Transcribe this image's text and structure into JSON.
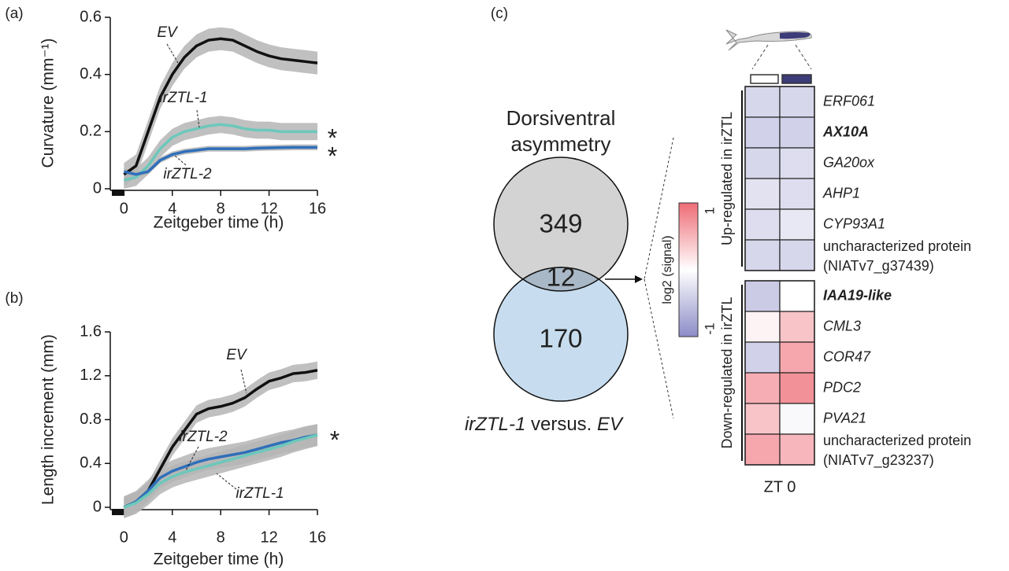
{
  "chart_data": [
    {
      "type": "line",
      "panel_label": "(a)",
      "xlabel": "Zeitgeber time (h)",
      "ylabel": "Curvature (mm⁻¹)",
      "x": [
        0,
        1,
        2,
        3,
        4,
        5,
        6,
        7,
        8,
        9,
        10,
        11,
        12,
        13,
        14,
        15,
        16
      ],
      "xlim": [
        -1,
        16
      ],
      "xticks": [
        0,
        4,
        8,
        12,
        16
      ],
      "ylim": [
        0,
        0.6
      ],
      "yticks": [
        0,
        0.2,
        0.4,
        0.6
      ],
      "dark_period": [
        -1,
        0
      ],
      "series": [
        {
          "name": "EV",
          "color": "#111111",
          "error": 0.04,
          "values": [
            0.05,
            0.08,
            0.2,
            0.32,
            0.4,
            0.46,
            0.5,
            0.52,
            0.525,
            0.52,
            0.5,
            0.48,
            0.465,
            0.455,
            0.45,
            0.445,
            0.44
          ]
        },
        {
          "name": "irZTL-1",
          "color": "#6cc8bb",
          "error": 0.03,
          "values": [
            0.03,
            0.04,
            0.08,
            0.14,
            0.18,
            0.2,
            0.21,
            0.22,
            0.225,
            0.22,
            0.21,
            0.205,
            0.205,
            0.2,
            0.2,
            0.2,
            0.2
          ]
        },
        {
          "name": "irZTL-2",
          "color": "#2f6fba",
          "error": 0.01,
          "values": [
            0.06,
            0.05,
            0.06,
            0.1,
            0.12,
            0.13,
            0.135,
            0.14,
            0.14,
            0.14,
            0.14,
            0.142,
            0.143,
            0.144,
            0.145,
            0.145,
            0.145
          ]
        }
      ],
      "annotations": [
        "*",
        "*"
      ]
    },
    {
      "type": "line",
      "panel_label": "(b)",
      "xlabel": "Zeitgeber time (h)",
      "ylabel": "Length increment (mm)",
      "x": [
        0,
        1,
        2,
        3,
        4,
        5,
        6,
        7,
        8,
        9,
        10,
        11,
        12,
        13,
        14,
        15,
        16
      ],
      "xlim": [
        -1,
        16
      ],
      "xticks": [
        0,
        4,
        8,
        12,
        16
      ],
      "ylim": [
        0,
        1.6
      ],
      "yticks": [
        0,
        0.4,
        0.8,
        1.2,
        1.6
      ],
      "dark_period": [
        -1,
        0
      ],
      "series": [
        {
          "name": "EV",
          "color": "#111111",
          "error": 0.08,
          "values": [
            0,
            0.05,
            0.15,
            0.35,
            0.55,
            0.7,
            0.85,
            0.9,
            0.92,
            0.95,
            1.0,
            1.08,
            1.15,
            1.18,
            1.22,
            1.23,
            1.25
          ]
        },
        {
          "name": "irZTL-2",
          "color": "#2f6fba",
          "error": 0.1,
          "values": [
            0,
            0.05,
            0.15,
            0.27,
            0.33,
            0.37,
            0.41,
            0.44,
            0.46,
            0.48,
            0.5,
            0.53,
            0.56,
            0.59,
            0.61,
            0.64,
            0.66
          ]
        },
        {
          "name": "irZTL-1",
          "color": "#6cc8bb",
          "error": 0.1,
          "values": [
            0,
            0.04,
            0.12,
            0.22,
            0.28,
            0.32,
            0.35,
            0.38,
            0.41,
            0.44,
            0.47,
            0.5,
            0.53,
            0.56,
            0.6,
            0.63,
            0.66
          ]
        }
      ],
      "annotations": [
        "*"
      ]
    },
    {
      "type": "venn",
      "panel_label": "(c)",
      "title": [
        "Dorsiventral",
        "asymmetry"
      ],
      "counts": [
        349,
        12,
        170
      ],
      "colors": [
        "#d3d3d3",
        "#a9b8c6",
        "#c7ddef"
      ],
      "bottom_label": [
        {
          "text": "irZTL-1",
          "italic": true
        },
        {
          "text": " versus. ",
          "italic": false
        },
        {
          "text": "EV",
          "italic": true
        }
      ]
    },
    {
      "type": "heatmap",
      "xlabel": "ZT 0",
      "clim": [
        -1,
        1
      ],
      "cbar_ticks": [
        1,
        -1
      ],
      "cbar_label": "log2 (signal)",
      "low_color": "#8c8cc8",
      "high_color": "#ee6c76",
      "groups": [
        {
          "label": "Up-regulated in irZTL",
          "rows": 6
        },
        {
          "label": "Down-regulated in irZTL",
          "rows": 6
        }
      ],
      "row_labels": [
        "ERF061",
        "AX10A",
        "GA20ox",
        "AHP1",
        "CYP93A1",
        [
          "uncharacterized protein",
          "(NIATv7_g37439)"
        ],
        "IAA19-like",
        "CML3",
        "COR47",
        "PDC2",
        "PVA21",
        [
          "uncharacterized protein",
          "(NIATv7_g23237)"
        ]
      ],
      "row_styles": [
        "italic",
        "bold-italic",
        "italic",
        "italic",
        "italic",
        "normal",
        "bold-italic",
        "italic",
        "italic",
        "italic",
        "italic",
        "normal"
      ],
      "values": [
        [
          -0.35,
          -0.35
        ],
        [
          -0.4,
          -0.4
        ],
        [
          -0.35,
          -0.3
        ],
        [
          -0.25,
          -0.3
        ],
        [
          -0.3,
          -0.2
        ],
        [
          -0.35,
          -0.35
        ],
        [
          -0.45,
          0
        ],
        [
          0.08,
          0.4
        ],
        [
          -0.4,
          0.6
        ],
        [
          0.55,
          0.75
        ],
        [
          0.4,
          -0.05
        ],
        [
          0.6,
          0.5
        ]
      ]
    }
  ]
}
